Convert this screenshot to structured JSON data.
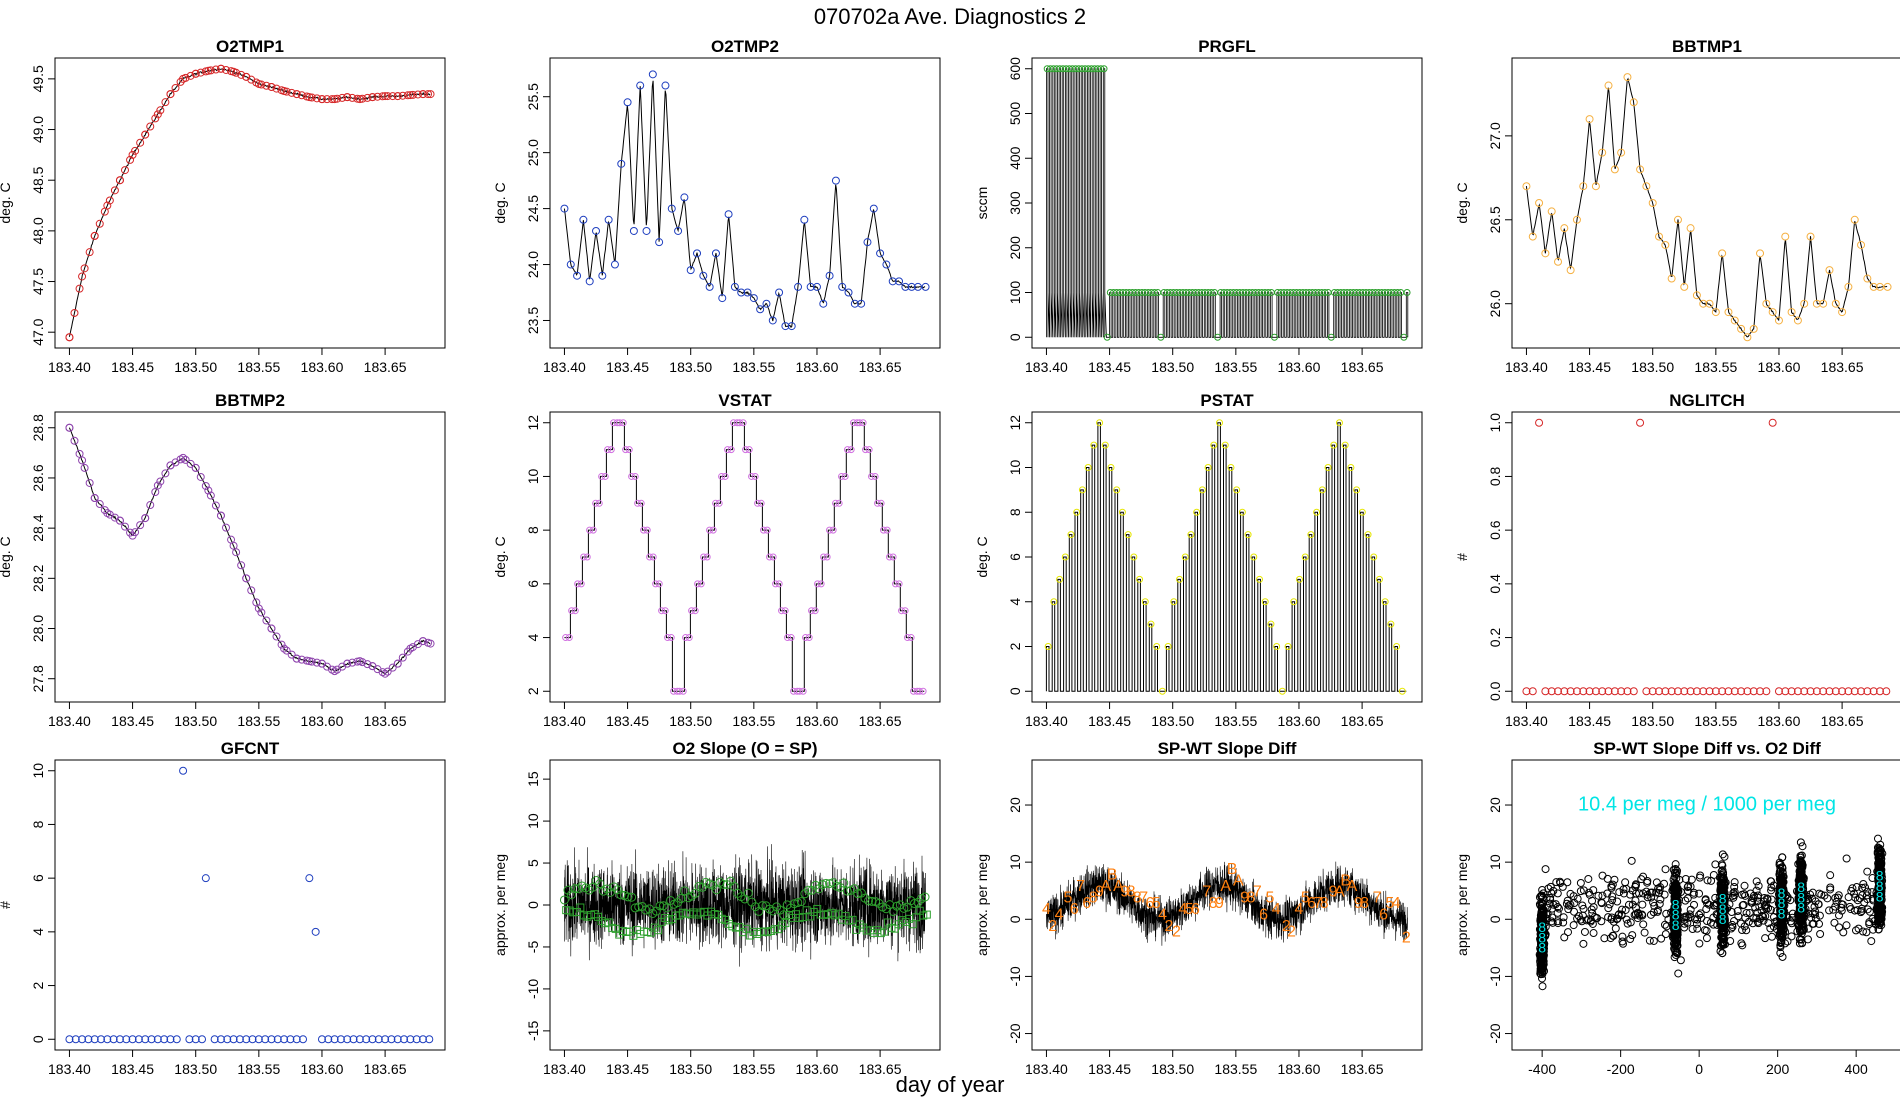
{
  "figure": {
    "title": "070702a   Ave. Diagnostics 2",
    "xlabel": "day of year"
  },
  "chart_data": [
    {
      "id": "o2tmp1",
      "type": "line",
      "title": "O2TMP1",
      "ylabel": "deg. C",
      "xlim": [
        183.4,
        183.686
      ],
      "ylim": [
        46.95,
        49.6
      ],
      "xticks": [
        183.4,
        183.45,
        183.5,
        183.55,
        183.6,
        183.65
      ],
      "yticks": [
        47.0,
        47.5,
        48.0,
        48.5,
        49.0,
        49.5
      ],
      "line_color": "#000000",
      "marker": "circle",
      "marker_color": "#d62728",
      "x": [
        183.4,
        183.41,
        183.42,
        183.43,
        183.44,
        183.45,
        183.46,
        183.47,
        183.48,
        183.49,
        183.5,
        183.51,
        183.52,
        183.53,
        183.54,
        183.55,
        183.56,
        183.57,
        183.58,
        183.59,
        183.6,
        183.61,
        183.62,
        183.63,
        183.64,
        183.65,
        183.66,
        183.67,
        183.68,
        183.686
      ],
      "y": [
        46.95,
        47.55,
        47.95,
        48.25,
        48.5,
        48.75,
        48.95,
        49.15,
        49.35,
        49.5,
        49.55,
        49.58,
        49.6,
        49.57,
        49.52,
        49.45,
        49.42,
        49.38,
        49.35,
        49.32,
        49.3,
        49.3,
        49.32,
        49.3,
        49.32,
        49.33,
        49.33,
        49.34,
        49.35,
        49.35
      ]
    },
    {
      "id": "o2tmp2",
      "type": "line",
      "title": "O2TMP2",
      "ylabel": "deg. C",
      "xlim": [
        183.4,
        183.686
      ],
      "ylim": [
        23.35,
        25.75
      ],
      "xticks": [
        183.4,
        183.45,
        183.5,
        183.55,
        183.6,
        183.65
      ],
      "yticks": [
        23.5,
        24.0,
        24.5,
        25.0,
        25.5
      ],
      "line_color": "#000000",
      "marker": "circle",
      "marker_color": "#1f3fbf",
      "x": [
        183.4,
        183.405,
        183.41,
        183.415,
        183.42,
        183.425,
        183.43,
        183.435,
        183.44,
        183.445,
        183.45,
        183.455,
        183.46,
        183.465,
        183.47,
        183.475,
        183.48,
        183.485,
        183.49,
        183.495,
        183.5,
        183.505,
        183.51,
        183.515,
        183.52,
        183.525,
        183.53,
        183.535,
        183.54,
        183.545,
        183.55,
        183.555,
        183.56,
        183.565,
        183.57,
        183.575,
        183.58,
        183.585,
        183.59,
        183.595,
        183.6,
        183.605,
        183.61,
        183.615,
        183.62,
        183.625,
        183.63,
        183.635,
        183.64,
        183.645,
        183.65,
        183.655,
        183.66,
        183.665,
        183.67,
        183.675,
        183.68,
        183.686
      ],
      "y": [
        24.5,
        24.0,
        23.9,
        24.4,
        23.85,
        24.3,
        23.9,
        24.4,
        24.0,
        24.9,
        25.45,
        24.3,
        25.6,
        24.3,
        25.7,
        24.2,
        25.6,
        24.5,
        24.3,
        24.6,
        23.95,
        24.1,
        23.9,
        23.8,
        24.1,
        23.7,
        24.45,
        23.8,
        23.75,
        23.75,
        23.7,
        23.6,
        23.65,
        23.5,
        23.75,
        23.45,
        23.45,
        23.8,
        24.4,
        23.8,
        23.8,
        23.65,
        23.9,
        24.75,
        23.8,
        23.75,
        23.65,
        23.65,
        24.2,
        24.5,
        24.1,
        24.0,
        23.85,
        23.85,
        23.8,
        23.8,
        23.8,
        23.8
      ]
    },
    {
      "id": "prgfl",
      "type": "line",
      "title": "PRGFL",
      "ylabel": "sccm",
      "xlim": [
        183.4,
        183.686
      ],
      "ylim": [
        0,
        600
      ],
      "xticks": [
        183.4,
        183.45,
        183.5,
        183.55,
        183.6,
        183.65
      ],
      "yticks": [
        0,
        100,
        200,
        300,
        400,
        500,
        600
      ],
      "line_color": "#000000",
      "marker": "circle",
      "marker_color": "#2ca02c",
      "pattern": "spikes between 0 and 600 until 183.445, then between 0 and 100 with gaps near 183.49, 183.535, 183.58, 183.625, 183.68"
    },
    {
      "id": "bbtmp1",
      "type": "line",
      "title": "BBTMP1",
      "ylabel": "deg. C",
      "xlim": [
        183.4,
        183.686
      ],
      "ylim": [
        25.8,
        27.4
      ],
      "xticks": [
        183.4,
        183.45,
        183.5,
        183.55,
        183.6,
        183.65
      ],
      "yticks": [
        26.0,
        26.5,
        27.0
      ],
      "line_color": "#000000",
      "marker": "circle",
      "marker_color": "#f5b041",
      "x": [
        183.4,
        183.405,
        183.41,
        183.415,
        183.42,
        183.425,
        183.43,
        183.435,
        183.44,
        183.445,
        183.45,
        183.455,
        183.46,
        183.465,
        183.47,
        183.475,
        183.48,
        183.485,
        183.49,
        183.495,
        183.5,
        183.505,
        183.51,
        183.515,
        183.52,
        183.525,
        183.53,
        183.535,
        183.54,
        183.545,
        183.55,
        183.555,
        183.56,
        183.565,
        183.57,
        183.575,
        183.58,
        183.585,
        183.59,
        183.595,
        183.6,
        183.605,
        183.61,
        183.615,
        183.62,
        183.625,
        183.63,
        183.635,
        183.64,
        183.645,
        183.65,
        183.655,
        183.66,
        183.665,
        183.67,
        183.675,
        183.68,
        183.686
      ],
      "y": [
        26.7,
        26.4,
        26.6,
        26.3,
        26.55,
        26.25,
        26.45,
        26.2,
        26.5,
        26.7,
        27.1,
        26.7,
        26.9,
        27.3,
        26.8,
        26.9,
        27.35,
        27.2,
        26.8,
        26.7,
        26.6,
        26.4,
        26.35,
        26.15,
        26.5,
        26.1,
        26.45,
        26.05,
        26.0,
        26.0,
        25.95,
        26.3,
        25.95,
        25.9,
        25.85,
        25.8,
        25.85,
        26.3,
        26.0,
        25.95,
        25.9,
        26.4,
        25.95,
        25.9,
        26.0,
        26.4,
        26.0,
        26.0,
        26.2,
        26.0,
        25.95,
        26.1,
        26.5,
        26.35,
        26.15,
        26.1,
        26.1,
        26.1
      ]
    },
    {
      "id": "bbtmp2",
      "type": "line",
      "title": "BBTMP2",
      "ylabel": "deg. C",
      "xlim": [
        183.4,
        183.686
      ],
      "ylim": [
        27.75,
        28.82
      ],
      "xticks": [
        183.4,
        183.45,
        183.5,
        183.55,
        183.6,
        183.65
      ],
      "yticks": [
        27.8,
        28.0,
        28.2,
        28.4,
        28.6,
        28.8
      ],
      "line_color": "#000000",
      "marker": "circle",
      "marker_color": "#8e44ad",
      "x": [
        183.4,
        183.41,
        183.42,
        183.43,
        183.44,
        183.45,
        183.46,
        183.47,
        183.48,
        183.49,
        183.5,
        183.51,
        183.52,
        183.53,
        183.54,
        183.55,
        183.56,
        183.57,
        183.58,
        183.59,
        183.6,
        183.61,
        183.62,
        183.63,
        183.64,
        183.65,
        183.66,
        183.67,
        183.68,
        183.686
      ],
      "y": [
        28.8,
        28.67,
        28.52,
        28.46,
        28.43,
        28.37,
        28.44,
        28.57,
        28.65,
        28.68,
        28.64,
        28.55,
        28.45,
        28.33,
        28.2,
        28.08,
        28.0,
        27.92,
        27.88,
        27.87,
        27.86,
        27.83,
        27.86,
        27.87,
        27.85,
        27.82,
        27.86,
        27.92,
        27.95,
        27.94
      ]
    },
    {
      "id": "vstat",
      "type": "step",
      "title": "VSTAT",
      "ylabel": "deg. C",
      "xlim": [
        183.4,
        183.686
      ],
      "ylim": [
        2,
        12
      ],
      "xticks": [
        183.4,
        183.45,
        183.5,
        183.55,
        183.6,
        183.65
      ],
      "yticks": [
        2,
        4,
        6,
        8,
        10,
        12
      ],
      "line_color": "#000000",
      "marker": "circle",
      "marker_color": "#d070e0",
      "pattern": "staircase cycles 4→12→2 three times (~0.095 day period)"
    },
    {
      "id": "pstat",
      "type": "step",
      "title": "PSTAT",
      "ylabel": "deg. C",
      "xlim": [
        183.4,
        183.686
      ],
      "ylim": [
        0,
        12
      ],
      "xticks": [
        183.4,
        183.45,
        183.5,
        183.55,
        183.6,
        183.65
      ],
      "yticks": [
        0,
        2,
        4,
        6,
        8,
        10,
        12
      ],
      "line_color": "#000000",
      "marker": "circle",
      "marker_color": "#e6e600",
      "pattern": "spikes from 0 up to a staircase envelope 2→12→2, three cycles"
    },
    {
      "id": "nglitch",
      "type": "scatter",
      "title": "NGLITCH",
      "ylabel": "#",
      "xlim": [
        183.4,
        183.686
      ],
      "ylim": [
        0,
        1
      ],
      "xticks": [
        183.4,
        183.45,
        183.5,
        183.55,
        183.6,
        183.65
      ],
      "yticks": [
        0.0,
        0.2,
        0.4,
        0.6,
        0.8,
        1.0
      ],
      "marker": "circle",
      "marker_color": "#d62728",
      "ones_at": [
        183.41,
        183.49,
        183.595
      ]
    },
    {
      "id": "gfcnt",
      "type": "scatter",
      "title": "GFCNT",
      "ylabel": "#",
      "xlim": [
        183.4,
        183.686
      ],
      "ylim": [
        0,
        10
      ],
      "xticks": [
        183.4,
        183.45,
        183.5,
        183.55,
        183.6,
        183.65
      ],
      "yticks": [
        0,
        2,
        4,
        6,
        8,
        10
      ],
      "marker": "circle",
      "marker_color": "#1f3fbf",
      "nonzero": [
        {
          "x": 183.49,
          "y": 10
        },
        {
          "x": 183.508,
          "y": 6
        },
        {
          "x": 183.59,
          "y": 6
        },
        {
          "x": 183.595,
          "y": 4
        }
      ]
    },
    {
      "id": "o2slope",
      "type": "line",
      "title": "O2 Slope (O = SP)",
      "ylabel": "approx. per meg",
      "xlim": [
        183.4,
        183.686
      ],
      "ylim": [
        -16,
        16
      ],
      "xticks": [
        183.4,
        183.45,
        183.5,
        183.55,
        183.6,
        183.65
      ],
      "yticks": [
        -15,
        -10,
        -5,
        0,
        5,
        10,
        15
      ],
      "line_color": "#000000",
      "marker_color": "#2ca02c",
      "series": [
        {
          "name": "O",
          "marker": "circle",
          "mean": 1.0
        },
        {
          "name": "squares",
          "marker": "square",
          "mean": -2.0
        }
      ],
      "noise_amplitude": 6
    },
    {
      "id": "spwt",
      "type": "line",
      "title": "SP-WT Slope Diff",
      "ylabel": "approx. per meg",
      "xlim": [
        183.4,
        183.686
      ],
      "ylim": [
        -21,
        26
      ],
      "xticks": [
        183.4,
        183.45,
        183.5,
        183.55,
        183.6,
        183.65
      ],
      "yticks": [
        -20,
        -10,
        0,
        10,
        20
      ],
      "line_color": "#000000",
      "label_color": "#ff7f0e",
      "labels": [
        {
          "t": "4",
          "x": 183.4,
          "y": 2
        },
        {
          "t": "2",
          "x": 183.405,
          "y": -1
        },
        {
          "t": "4",
          "x": 183.41,
          "y": 1
        },
        {
          "t": "5",
          "x": 183.417,
          "y": 4
        },
        {
          "t": "6",
          "x": 183.422,
          "y": 2
        },
        {
          "t": "7",
          "x": 183.427,
          "y": 6
        },
        {
          "t": "6",
          "x": 183.432,
          "y": 3
        },
        {
          "t": "8",
          "x": 183.437,
          "y": 4
        },
        {
          "t": "9",
          "x": 183.442,
          "y": 5
        },
        {
          "t": "A",
          "x": 183.447,
          "y": 6
        },
        {
          "t": "B",
          "x": 183.452,
          "y": 8
        },
        {
          "t": "A",
          "x": 183.457,
          "y": 6
        },
        {
          "t": "9",
          "x": 183.462,
          "y": 5
        },
        {
          "t": "8",
          "x": 183.467,
          "y": 5
        },
        {
          "t": "8",
          "x": 183.472,
          "y": 4
        },
        {
          "t": "7",
          "x": 183.477,
          "y": 4
        },
        {
          "t": "6",
          "x": 183.482,
          "y": 3
        },
        {
          "t": "5",
          "x": 183.487,
          "y": 3
        },
        {
          "t": "4",
          "x": 183.492,
          "y": 1
        },
        {
          "t": "2",
          "x": 183.497,
          "y": -1
        },
        {
          "t": "2",
          "x": 183.503,
          "y": -2
        },
        {
          "t": "4",
          "x": 183.508,
          "y": 2
        },
        {
          "t": "5",
          "x": 183.513,
          "y": 2
        },
        {
          "t": "6",
          "x": 183.518,
          "y": 2
        },
        {
          "t": "7",
          "x": 183.527,
          "y": 5
        },
        {
          "t": "8",
          "x": 183.532,
          "y": 3
        },
        {
          "t": "9",
          "x": 183.537,
          "y": 3
        },
        {
          "t": "A",
          "x": 183.542,
          "y": 6
        },
        {
          "t": "B",
          "x": 183.547,
          "y": 9
        },
        {
          "t": "A",
          "x": 183.552,
          "y": 7
        },
        {
          "t": "9",
          "x": 183.557,
          "y": 4
        },
        {
          "t": "8",
          "x": 183.562,
          "y": 4
        },
        {
          "t": "7",
          "x": 183.567,
          "y": 5
        },
        {
          "t": "6",
          "x": 183.572,
          "y": 1
        },
        {
          "t": "5",
          "x": 183.577,
          "y": 4
        },
        {
          "t": "4",
          "x": 183.582,
          "y": 2
        },
        {
          "t": "2",
          "x": 183.59,
          "y": -1
        },
        {
          "t": "2",
          "x": 183.594,
          "y": -2
        },
        {
          "t": "4",
          "x": 183.6,
          "y": 2
        },
        {
          "t": "5",
          "x": 183.605,
          "y": 4
        },
        {
          "t": "6",
          "x": 183.61,
          "y": 3
        },
        {
          "t": "7",
          "x": 183.615,
          "y": 3
        },
        {
          "t": "8",
          "x": 183.62,
          "y": 3
        },
        {
          "t": "9",
          "x": 183.627,
          "y": 5
        },
        {
          "t": "A",
          "x": 183.632,
          "y": 5
        },
        {
          "t": "B",
          "x": 183.637,
          "y": 7
        },
        {
          "t": "A",
          "x": 183.642,
          "y": 6
        },
        {
          "t": "9",
          "x": 183.647,
          "y": 3
        },
        {
          "t": "8",
          "x": 183.652,
          "y": 3
        },
        {
          "t": "7",
          "x": 183.662,
          "y": 4
        },
        {
          "t": "6",
          "x": 183.667,
          "y": 1
        },
        {
          "t": "5",
          "x": 183.672,
          "y": 3
        },
        {
          "t": "4",
          "x": 183.677,
          "y": 3
        },
        {
          "t": "2",
          "x": 183.685,
          "y": -3
        }
      ]
    },
    {
      "id": "spwt_vs_o2",
      "type": "scatter",
      "title": "SP-WT Slope Diff vs. O2 Diff",
      "ylabel": "approx. per meg",
      "xlim": [
        -440,
        480
      ],
      "ylim": [
        -21,
        26
      ],
      "xticks": [
        -400,
        -200,
        0,
        200,
        400
      ],
      "yticks": [
        -20,
        -10,
        0,
        10,
        20
      ],
      "marker": "circle",
      "marker_color": "#000000",
      "label_color": "#00e5e5",
      "annotation": "10.4 per meg / 1000 per meg",
      "clusters": [
        {
          "x": -400,
          "center": -3
        },
        {
          "x": -60,
          "center": 1
        },
        {
          "x": 60,
          "center": 2
        },
        {
          "x": 210,
          "center": 3
        },
        {
          "x": 260,
          "center": 4
        },
        {
          "x": 460,
          "center": 6
        }
      ]
    }
  ]
}
